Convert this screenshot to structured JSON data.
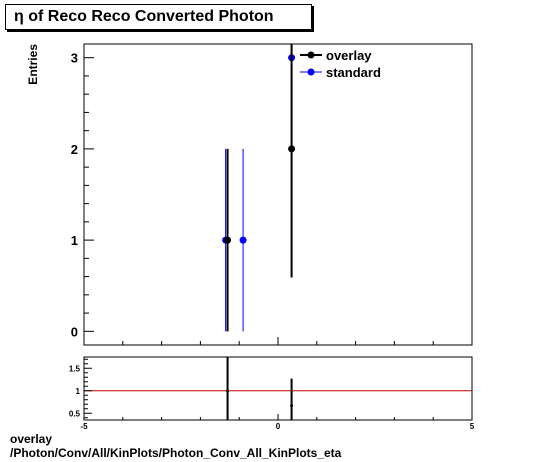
{
  "title": "η of Reco Reco Converted Photon",
  "footer": {
    "line1": "overlay",
    "line2": "/Photon/Conv/All/KinPlots/Photon_Conv_All_KinPlots_eta"
  },
  "colors": {
    "overlay": "#000000",
    "standard": "#0000ff",
    "ratio_line": "#cc0000"
  },
  "chart_data": [
    {
      "type": "scatter",
      "title": "η of Reco Reco Converted Photon",
      "xlabel": "",
      "ylabel": "Entries",
      "xlim": [
        -5,
        5
      ],
      "ylim": [
        -0.15,
        3.15
      ],
      "yticks": [
        0,
        1,
        2,
        3
      ],
      "legend_position": "top-right",
      "series": [
        {
          "name": "overlay",
          "color": "#000000",
          "points": [
            {
              "x": -1.3,
              "y": 1,
              "err": 1
            },
            {
              "x": 0.35,
              "y": 2,
              "err": 1.41
            }
          ]
        },
        {
          "name": "standard",
          "color": "#0000ff",
          "points": [
            {
              "x": -1.35,
              "y": 1,
              "err": 1
            },
            {
              "x": -0.9,
              "y": 1,
              "err": 1
            },
            {
              "x": 0.35,
              "y": 3,
              "err": 1.73
            }
          ]
        }
      ]
    },
    {
      "type": "scatter",
      "xlabel": "",
      "ylabel": "",
      "xlim": [
        -5,
        5
      ],
      "ylim": [
        0.35,
        1.75
      ],
      "xticks": [
        -5,
        0,
        5
      ],
      "yticks": [
        0.5,
        1,
        1.5
      ],
      "ytick_labels": [
        "0.5",
        "1",
        "1.5"
      ],
      "reference_line": 1,
      "points": [
        {
          "x": -1.3,
          "y": 1,
          "err": 1.41
        },
        {
          "x": 0.35,
          "y": 0.67,
          "err": 0.6
        }
      ]
    }
  ]
}
